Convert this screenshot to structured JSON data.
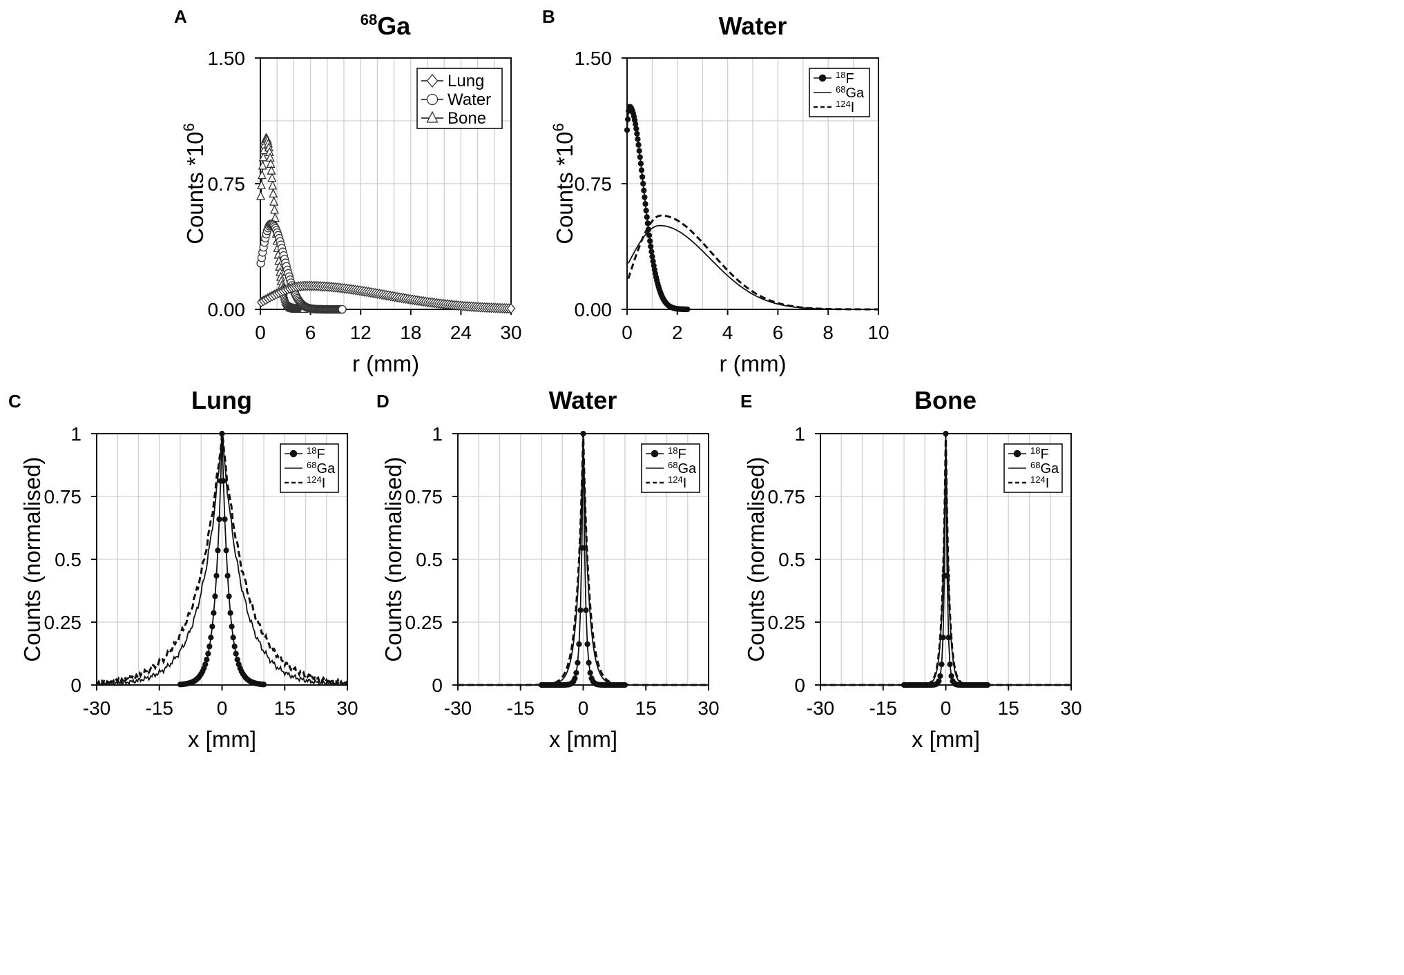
{
  "figure": {
    "panels": [
      "A",
      "B",
      "C",
      "D",
      "E"
    ]
  },
  "chart_data": [
    {
      "panel": "A",
      "type": "line",
      "title_sup": "68",
      "title_main": "Ga",
      "xlabel": "r (mm)",
      "ylabel_main": "Counts *10",
      "ylabel_sup": "6",
      "xlim": [
        0,
        30
      ],
      "ylim": [
        0,
        1.5
      ],
      "xticks": [
        0,
        6,
        12,
        18,
        24,
        30
      ],
      "xtick_labels": [
        "0",
        "6",
        "12",
        "18",
        "24",
        "30"
      ],
      "yticks": [
        0,
        0.75,
        1.5
      ],
      "ytick_labels": [
        "0.00",
        "0.75",
        "1.50"
      ],
      "xgrid_step": 2,
      "ygrid_step": 0.375,
      "legend": {
        "position": "top-right"
      },
      "series": [
        {
          "name": "Lung",
          "marker": "diamond",
          "line": "solid",
          "peak_x": 5.5,
          "peak_y": 0.14,
          "x0": 0.1,
          "x1": 30,
          "npts": 115,
          "y_start": 0.04
        },
        {
          "name": "Water",
          "marker": "circle",
          "line": "solid",
          "peak_x": 1.3,
          "peak_y": 0.51,
          "x0": 0.05,
          "x1": 9.8,
          "npts": 90,
          "y_start": 0.26
        },
        {
          "name": "Bone",
          "marker": "triangle",
          "line": "solid",
          "peak_x": 0.7,
          "peak_y": 1.02,
          "x0": 0.05,
          "x1": 5.2,
          "npts": 70,
          "y_start": 0.63
        }
      ]
    },
    {
      "panel": "B",
      "type": "line",
      "title": "Water",
      "xlabel": "r (mm)",
      "ylabel_main": "Counts *10",
      "ylabel_sup": "6",
      "xlim": [
        0,
        10
      ],
      "ylim": [
        0,
        1.5
      ],
      "xticks": [
        0,
        2,
        4,
        6,
        8,
        10
      ],
      "xtick_labels": [
        "0",
        "2",
        "4",
        "6",
        "8",
        "10"
      ],
      "yticks": [
        0,
        0.75,
        1.5
      ],
      "ytick_labels": [
        "0.00",
        "0.75",
        "1.50"
      ],
      "xgrid_step": 1,
      "ygrid_step": 0.375,
      "legend": {
        "position": "top-right"
      },
      "series": [
        {
          "name_sup": "18",
          "name_main": "F",
          "marker": "dot",
          "line": "solid",
          "peak_x": 0.1,
          "peak_y": 1.21,
          "x0": 0.0,
          "x1": 2.4,
          "npts": 80,
          "y_start": 1.07
        },
        {
          "name_sup": "68",
          "name_main": "Ga",
          "marker": "none",
          "line": "solid",
          "peak_x": 1.3,
          "peak_y": 0.5,
          "x0": 0.05,
          "x1": 10,
          "npts": 160,
          "y_start": 0.26
        },
        {
          "name_sup": "124",
          "name_main": "I",
          "marker": "none",
          "line": "dashed",
          "peak_x": 1.35,
          "peak_y": 0.56,
          "x0": 0.05,
          "x1": 10,
          "npts": 160,
          "y_start": 0.16
        }
      ]
    },
    {
      "panel": "C",
      "type": "line",
      "title": "Lung",
      "xlabel": "x [mm]",
      "ylabel": "Counts (normalised)",
      "xlim": [
        -30,
        30
      ],
      "ylim": [
        0,
        1
      ],
      "xticks": [
        -30,
        -15,
        0,
        15,
        30
      ],
      "xtick_labels": [
        "-30",
        "-15",
        "0",
        "15",
        "30"
      ],
      "yticks": [
        0,
        0.25,
        0.5,
        0.75,
        1
      ],
      "ytick_labels": [
        "0",
        "0.25",
        "0.5",
        "0.75",
        "1"
      ],
      "xgrid_step": 5,
      "ygrid_step": 0.25,
      "legend": {
        "position": "top-right"
      },
      "series": [
        {
          "name_sup": "18",
          "name_main": "F",
          "marker": "dot",
          "line": "solid",
          "decay_len": 1.6,
          "x_range": [
            -10,
            10
          ],
          "npts": 61
        },
        {
          "name_sup": "68",
          "name_main": "Ga",
          "marker": "none",
          "line": "solid",
          "decay_len": 5.0,
          "x_range": [
            -30,
            30
          ],
          "npts": 241
        },
        {
          "name_sup": "124",
          "name_main": "I",
          "marker": "none",
          "line": "dashed",
          "decay_len": 6.2,
          "x_range": [
            -30,
            30
          ],
          "npts": 241
        }
      ]
    },
    {
      "panel": "D",
      "type": "line",
      "title": "Water",
      "xlabel": "x [mm]",
      "ylabel": "Counts (normalised)",
      "xlim": [
        -30,
        30
      ],
      "ylim": [
        0,
        1
      ],
      "xticks": [
        -30,
        -15,
        0,
        15,
        30
      ],
      "xtick_labels": [
        "-30",
        "-15",
        "0",
        "15",
        "30"
      ],
      "yticks": [
        0,
        0.25,
        0.5,
        0.75,
        1
      ],
      "ytick_labels": [
        "0",
        "0.25",
        "0.5",
        "0.75",
        "1"
      ],
      "xgrid_step": 5,
      "ygrid_step": 0.25,
      "legend": {
        "position": "top-right"
      },
      "series": [
        {
          "name_sup": "18",
          "name_main": "F",
          "marker": "dot",
          "line": "solid",
          "decay_len": 0.55,
          "x_range": [
            -10,
            10
          ],
          "npts": 61
        },
        {
          "name_sup": "68",
          "name_main": "Ga",
          "marker": "none",
          "line": "solid",
          "decay_len": 1.3,
          "x_range": [
            -30,
            30
          ],
          "npts": 241
        },
        {
          "name_sup": "124",
          "name_main": "I",
          "marker": "none",
          "line": "dashed",
          "decay_len": 1.45,
          "x_range": [
            -30,
            30
          ],
          "npts": 241
        }
      ]
    },
    {
      "panel": "E",
      "type": "line",
      "title": "Bone",
      "xlabel": "x [mm]",
      "ylabel": "Counts (normalised)",
      "xlim": [
        -30,
        30
      ],
      "ylim": [
        0,
        1
      ],
      "xticks": [
        -30,
        -15,
        0,
        15,
        30
      ],
      "xtick_labels": [
        "-30",
        "-15",
        "0",
        "15",
        "30"
      ],
      "yticks": [
        0,
        0.25,
        0.5,
        0.75,
        1
      ],
      "ytick_labels": [
        "0",
        "0.25",
        "0.5",
        "0.75",
        "1"
      ],
      "xgrid_step": 5,
      "ygrid_step": 0.25,
      "legend": {
        "position": "top-right"
      },
      "series": [
        {
          "name_sup": "18",
          "name_main": "F",
          "marker": "dot",
          "line": "solid",
          "decay_len": 0.4,
          "x_range": [
            -10,
            10
          ],
          "npts": 61
        },
        {
          "name_sup": "68",
          "name_main": "Ga",
          "marker": "none",
          "line": "solid",
          "decay_len": 0.75,
          "x_range": [
            -30,
            30
          ],
          "npts": 241
        },
        {
          "name_sup": "124",
          "name_main": "I",
          "marker": "none",
          "line": "dashed",
          "decay_len": 0.8,
          "x_range": [
            -30,
            30
          ],
          "npts": 241
        }
      ]
    }
  ]
}
